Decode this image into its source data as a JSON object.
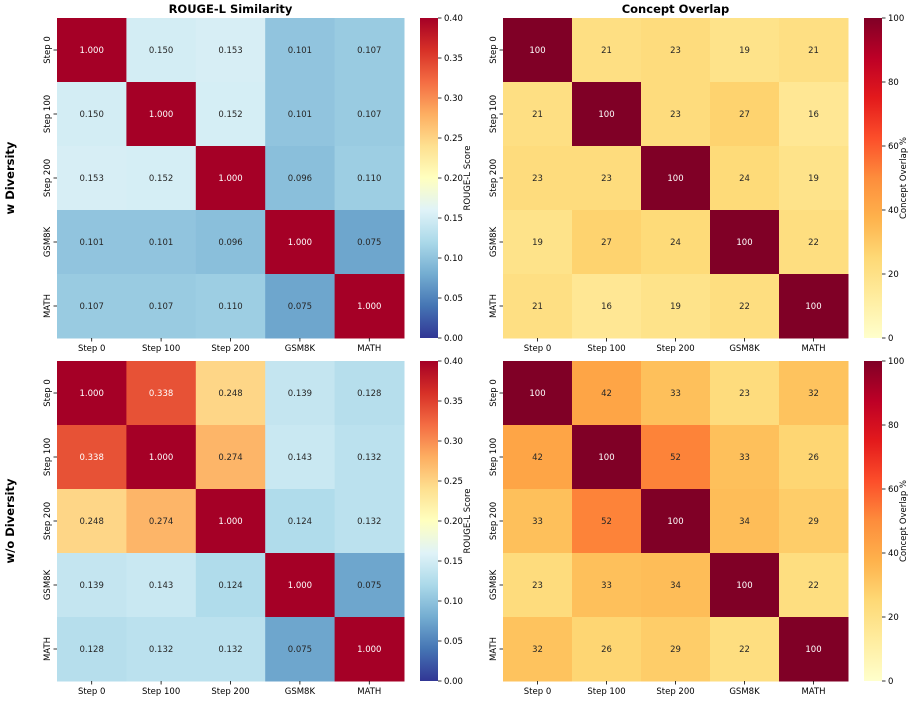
{
  "figure": {
    "row_labels": [
      "w Diversity",
      "w/o Diversity"
    ],
    "column_titles": [
      "ROUGE-L Similarity",
      "Concept Overlap"
    ]
  },
  "chart_data": [
    {
      "type": "heatmap",
      "panel": "w Diversity / ROUGE-L Similarity",
      "title": "ROUGE-L Similarity",
      "row_label": "w Diversity",
      "x_categories": [
        "Step 0",
        "Step 100",
        "Step 200",
        "GSM8K",
        "MATH"
      ],
      "y_categories": [
        "Step 0",
        "Step 100",
        "Step 200",
        "GSM8K",
        "MATH"
      ],
      "values": [
        [
          "1.000",
          "0.150",
          "0.153",
          "0.101",
          "0.107"
        ],
        [
          "0.150",
          "1.000",
          "0.152",
          "0.101",
          "0.107"
        ],
        [
          "0.153",
          "0.152",
          "1.000",
          "0.096",
          "0.110"
        ],
        [
          "0.101",
          "0.101",
          "0.096",
          "1.000",
          "0.075"
        ],
        [
          "0.107",
          "0.107",
          "0.110",
          "0.075",
          "1.000"
        ]
      ],
      "colormap": "RdYlBu_r",
      "vmin": 0,
      "vmax": 0.4,
      "colorbar_label": "ROUGE-L Score",
      "colorbar_ticks": [
        "0.00",
        "0.05",
        "0.10",
        "0.15",
        "0.20",
        "0.25",
        "0.30",
        "0.35",
        "0.40"
      ]
    },
    {
      "type": "heatmap",
      "panel": "w Diversity / Concept Overlap",
      "title": "Concept Overlap",
      "row_label": "w Diversity",
      "x_categories": [
        "Step 0",
        "Step 100",
        "Step 200",
        "GSM8K",
        "MATH"
      ],
      "y_categories": [
        "Step 0",
        "Step 100",
        "Step 200",
        "GSM8K",
        "MATH"
      ],
      "values": [
        [
          "100",
          "21",
          "23",
          "19",
          "21"
        ],
        [
          "21",
          "100",
          "23",
          "27",
          "16"
        ],
        [
          "23",
          "23",
          "100",
          "24",
          "19"
        ],
        [
          "19",
          "27",
          "24",
          "100",
          "22"
        ],
        [
          "21",
          "16",
          "19",
          "22",
          "100"
        ]
      ],
      "colormap": "YlOrRd",
      "vmin": 0,
      "vmax": 100,
      "colorbar_label": "Concept Overlap %",
      "colorbar_ticks": [
        "0",
        "20",
        "40",
        "60",
        "80",
        "100"
      ]
    },
    {
      "type": "heatmap",
      "panel": "w/o Diversity / ROUGE-L Similarity",
      "title": "",
      "row_label": "w/o Diversity",
      "x_categories": [
        "Step 0",
        "Step 100",
        "Step 200",
        "GSM8K",
        "MATH"
      ],
      "y_categories": [
        "Step 0",
        "Step 100",
        "Step 200",
        "GSM8K",
        "MATH"
      ],
      "values": [
        [
          "1.000",
          "0.338",
          "0.248",
          "0.139",
          "0.128"
        ],
        [
          "0.338",
          "1.000",
          "0.274",
          "0.143",
          "0.132"
        ],
        [
          "0.248",
          "0.274",
          "1.000",
          "0.124",
          "0.132"
        ],
        [
          "0.139",
          "0.143",
          "0.124",
          "1.000",
          "0.075"
        ],
        [
          "0.128",
          "0.132",
          "0.132",
          "0.075",
          "1.000"
        ]
      ],
      "colormap": "RdYlBu_r",
      "vmin": 0,
      "vmax": 0.4,
      "colorbar_label": "ROUGE-L Score",
      "colorbar_ticks": [
        "0.00",
        "0.05",
        "0.10",
        "0.15",
        "0.20",
        "0.25",
        "0.30",
        "0.35",
        "0.40"
      ]
    },
    {
      "type": "heatmap",
      "panel": "w/o Diversity / Concept Overlap",
      "title": "",
      "row_label": "w/o Diversity",
      "x_categories": [
        "Step 0",
        "Step 100",
        "Step 200",
        "GSM8K",
        "MATH"
      ],
      "y_categories": [
        "Step 0",
        "Step 100",
        "Step 200",
        "GSM8K",
        "MATH"
      ],
      "values": [
        [
          "100",
          "42",
          "33",
          "23",
          "32"
        ],
        [
          "42",
          "100",
          "52",
          "33",
          "26"
        ],
        [
          "33",
          "52",
          "100",
          "34",
          "29"
        ],
        [
          "23",
          "33",
          "34",
          "100",
          "22"
        ],
        [
          "32",
          "26",
          "29",
          "22",
          "100"
        ]
      ],
      "colormap": "YlOrRd",
      "vmin": 0,
      "vmax": 100,
      "colorbar_label": "Concept Overlap %",
      "colorbar_ticks": [
        "0",
        "20",
        "40",
        "60",
        "80",
        "100"
      ]
    }
  ]
}
